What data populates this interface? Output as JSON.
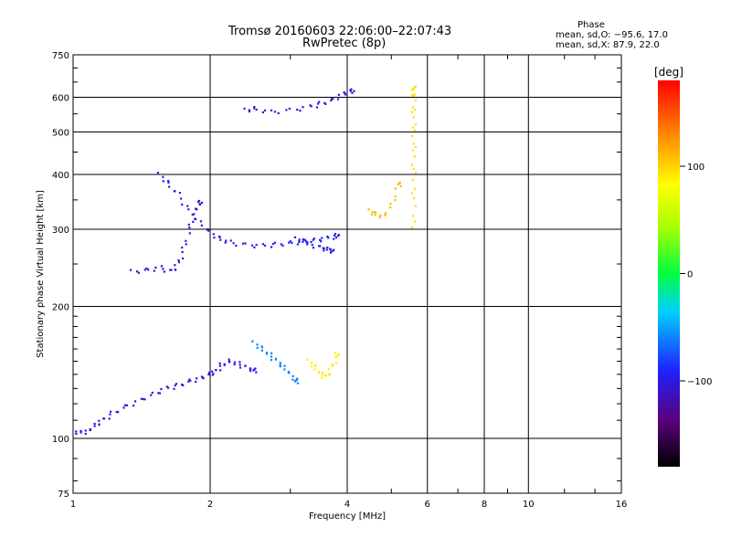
{
  "header": {
    "title_line1": "Tromsø 20160603 22:06:00–22:07:43",
    "title_line2": "RwPretec (8p)"
  },
  "phase_stats": {
    "title": "Phase",
    "line1": "mean, sd,O: −95.6, 17.0",
    "line2": "mean, sd,X:  87.9, 22.0"
  },
  "colorbar": {
    "label": "[deg]",
    "min": -180,
    "max": 180,
    "ticks": [
      {
        "value": 100,
        "label": "100"
      },
      {
        "value": 0,
        "label": "0"
      },
      {
        "value": -100,
        "label": "−100"
      }
    ]
  },
  "chart_data": {
    "type": "scatter",
    "title": "Tromsø 20160603 22:06:00–22:07:43",
    "subtitle": "RwPretec (8p)",
    "xlabel": "Frequency [MHz]",
    "ylabel": "Stationary phase Virtual Height [km]",
    "x_scale": "log",
    "y_scale": "log",
    "xlim": [
      1,
      16
    ],
    "ylim": [
      75,
      750
    ],
    "x_ticks": [
      1,
      2,
      4,
      6,
      8,
      10,
      16
    ],
    "y_ticks": [
      75,
      100,
      200,
      300,
      400,
      500,
      600,
      750
    ],
    "grid": true,
    "color_variable": "phase [deg]",
    "series": [
      {
        "description": "O-mode low trace",
        "points": [
          [
            1.0,
            104
          ],
          [
            1.04,
            103
          ],
          [
            1.08,
            104
          ],
          [
            1.12,
            107
          ],
          [
            1.16,
            110
          ],
          [
            1.22,
            114
          ],
          [
            1.3,
            118
          ],
          [
            1.4,
            122
          ],
          [
            1.5,
            126
          ],
          [
            1.6,
            130
          ],
          [
            1.7,
            132
          ],
          [
            1.8,
            135
          ],
          [
            1.9,
            137
          ],
          [
            2.0,
            140
          ],
          [
            2.05,
            142
          ],
          [
            2.12,
            147
          ],
          [
            2.2,
            150
          ],
          [
            2.3,
            148
          ],
          [
            2.4,
            145
          ],
          [
            2.5,
            143
          ]
        ],
        "phase": -100
      },
      {
        "description": "O-mode E/F1 cusp",
        "points": [
          [
            1.35,
            240
          ],
          [
            1.45,
            242
          ],
          [
            1.55,
            245
          ],
          [
            1.65,
            240
          ],
          [
            1.7,
            250
          ],
          [
            1.75,
            270
          ],
          [
            1.8,
            300
          ],
          [
            1.85,
            330
          ],
          [
            1.9,
            345
          ]
        ],
        "phase": -105
      },
      {
        "description": "F-region trace",
        "points": [
          [
            1.55,
            400
          ],
          [
            1.62,
            380
          ],
          [
            1.7,
            360
          ],
          [
            1.8,
            330
          ],
          [
            1.9,
            310
          ],
          [
            2.0,
            295
          ],
          [
            2.1,
            285
          ],
          [
            2.2,
            280
          ],
          [
            2.4,
            276
          ],
          [
            2.6,
            275
          ],
          [
            2.8,
            277
          ],
          [
            3.0,
            279
          ],
          [
            3.2,
            281
          ],
          [
            3.4,
            283
          ],
          [
            3.6,
            286
          ],
          [
            3.8,
            290
          ]
        ],
        "phase": -95
      },
      {
        "description": "F-region spread",
        "points": [
          [
            3.1,
            285
          ],
          [
            3.2,
            282
          ],
          [
            3.3,
            278
          ],
          [
            3.5,
            272
          ],
          [
            3.6,
            270
          ],
          [
            3.7,
            268
          ]
        ],
        "phase": -95
      },
      {
        "description": "Upper trace near 500-600 km",
        "points": [
          [
            2.4,
            560
          ],
          [
            2.5,
            565
          ],
          [
            2.7,
            555
          ],
          [
            3.0,
            560
          ],
          [
            3.3,
            570
          ],
          [
            3.5,
            580
          ],
          [
            3.7,
            590
          ],
          [
            3.9,
            610
          ],
          [
            4.1,
            620
          ]
        ],
        "phase": -100
      },
      {
        "description": "X-mode near 4.5-5 MHz",
        "points": [
          [
            4.5,
            330
          ],
          [
            4.6,
            325
          ],
          [
            4.8,
            320
          ],
          [
            5.0,
            340
          ],
          [
            5.2,
            380
          ]
        ],
        "phase": 110
      },
      {
        "description": "X-mode vertical 5.6 MHz",
        "points": [
          [
            5.6,
            300
          ],
          [
            5.6,
            350
          ],
          [
            5.6,
            400
          ],
          [
            5.6,
            450
          ],
          [
            5.6,
            500
          ],
          [
            5.6,
            550
          ],
          [
            5.6,
            600
          ],
          [
            5.6,
            630
          ]
        ],
        "phase": 95
      },
      {
        "description": "Mid-band 2.5-3.0 MHz cluster",
        "points": [
          [
            2.5,
            165
          ],
          [
            2.6,
            160
          ],
          [
            2.7,
            155
          ],
          [
            2.8,
            150
          ],
          [
            2.9,
            145
          ],
          [
            3.0,
            140
          ],
          [
            3.1,
            135
          ]
        ],
        "phase": -60
      },
      {
        "description": "Yellow patch 3.3-3.8 MHz",
        "points": [
          [
            3.3,
            150
          ],
          [
            3.4,
            145
          ],
          [
            3.5,
            140
          ],
          [
            3.6,
            138
          ],
          [
            3.7,
            145
          ],
          [
            3.8,
            155
          ]
        ],
        "phase": 90
      }
    ]
  }
}
